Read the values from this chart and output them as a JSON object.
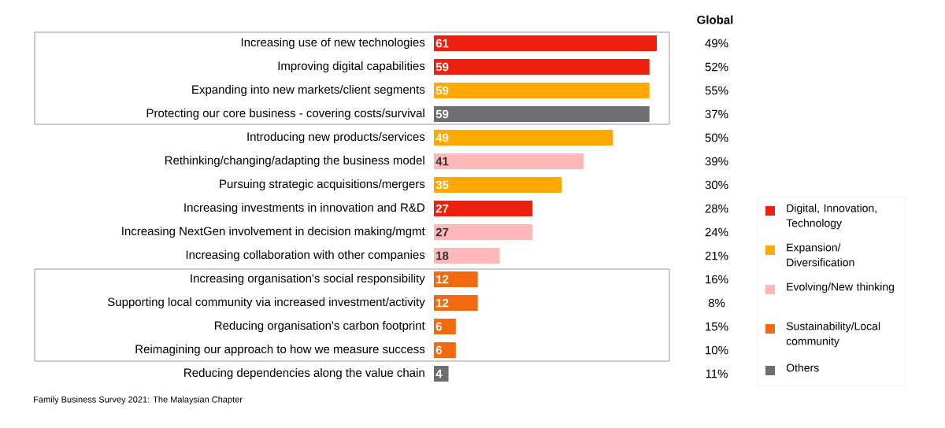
{
  "chart_data": {
    "type": "bar",
    "orientation": "horizontal",
    "data_labels": true,
    "legend": "right",
    "tick_labels": "y",
    "categories": [
      "Increasing use of new technologies",
      "Improving digital capabilities",
      "Expanding into new markets/client segments",
      "Protecting our core business - covering costs/survival",
      "Introducing new products/services",
      "Rethinking/changing/adapting the business model",
      "Pursuing strategic acquisitions/mergers",
      "Increasing investments in innovation and R&D",
      "Increasing NextGen involvement in decision making/mgmt",
      "Increasing collaboration with other companies",
      "Increasing organisation's social responsibility",
      "Supporting local community via increased investment/activity",
      "Reducing organisation's carbon footprint",
      "Reimagining our approach to how we measure success",
      "Reducing dependencies along the value chain"
    ],
    "series": [
      {
        "name": "Digital, Innovation, Technology",
        "color": "#f0200e",
        "values": [
          61,
          59,
          null,
          null,
          null,
          null,
          null,
          27,
          null,
          null,
          null,
          null,
          null,
          null,
          null
        ]
      },
      {
        "name": "Expansion/ Diversification",
        "color": "#ffa800",
        "values": [
          null,
          null,
          59,
          null,
          49,
          null,
          35,
          null,
          null,
          null,
          null,
          null,
          null,
          null,
          null
        ]
      },
      {
        "name": "Evolving/New thinking",
        "color": "#ffb8b8",
        "values": [
          null,
          null,
          null,
          null,
          null,
          41,
          null,
          null,
          27,
          18,
          null,
          null,
          null,
          null,
          null
        ]
      },
      {
        "name": "Sustainability/Local community",
        "color": "#f26a10",
        "values": [
          null,
          null,
          null,
          null,
          null,
          null,
          null,
          null,
          null,
          null,
          12,
          12,
          6,
          6,
          null
        ]
      },
      {
        "name": "Others",
        "color": "#6d6e71",
        "values": [
          null,
          null,
          null,
          59,
          null,
          null,
          null,
          null,
          null,
          null,
          null,
          null,
          null,
          null,
          4
        ]
      }
    ],
    "annotations": [
      "Global",
      "49%",
      "52%",
      "55%",
      "37%",
      "50%",
      "39%",
      "30%",
      "28%",
      "24%",
      "21%",
      "16%",
      "8%",
      "15%",
      "10%",
      "11%",
      "Family Business Survey 2021: The Malaysian Chapter"
    ]
  }
}
